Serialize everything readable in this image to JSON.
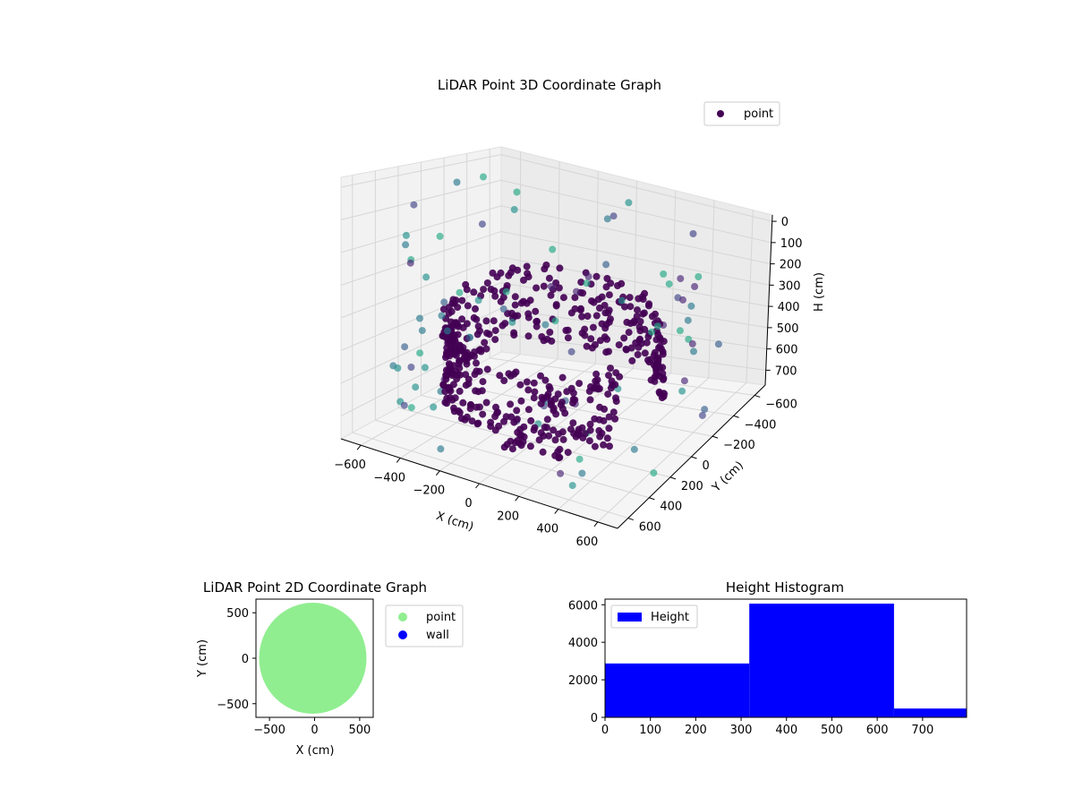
{
  "chart_data": [
    {
      "type": "scatter3d",
      "title": "LiDAR Point 3D Coordinate Graph",
      "xlabel": "X (cm)",
      "ylabel": "Y (cm)",
      "zlabel": "H (cm)",
      "xticks": [
        "−600",
        "−400",
        "−200",
        "0",
        "200",
        "400",
        "600"
      ],
      "yticks": [
        "−600",
        "−400",
        "−200",
        "0",
        "200",
        "400",
        "600"
      ],
      "zticks": [
        "0",
        "100",
        "200",
        "300",
        "400",
        "500",
        "600",
        "700"
      ],
      "xlim": [
        -650,
        650
      ],
      "ylim": [
        -650,
        650
      ],
      "zlim": [
        750,
        0
      ],
      "zaxis_inverted": true,
      "legend": [
        {
          "label": "point",
          "color": "#440154"
        }
      ],
      "legend_position": "upper-right",
      "colormap": "viridis",
      "grid": true
    },
    {
      "type": "scatter",
      "title": "LiDAR Point 2D Coordinate Graph",
      "xlabel": "X (cm)",
      "ylabel": "Y (cm)",
      "xticks": [
        "−500",
        "0",
        "500"
      ],
      "yticks": [
        "−500",
        "0",
        "500"
      ],
      "xlim": [
        -650,
        650
      ],
      "ylim": [
        -650,
        650
      ],
      "series": [
        {
          "name": "point",
          "color": "#90ee90"
        },
        {
          "name": "wall",
          "color": "#0000ff"
        }
      ],
      "legend_position": "outside-right"
    },
    {
      "type": "bar",
      "title": "Height Histogram",
      "xticks": [
        "0",
        "100",
        "200",
        "300",
        "400",
        "500",
        "600",
        "700"
      ],
      "yticks": [
        "0",
        "2000",
        "4000",
        "6000"
      ],
      "xlim": [
        0,
        797
      ],
      "ylim": [
        0,
        6300
      ],
      "bins": [
        {
          "from": 0,
          "to": 318,
          "count": 2870
        },
        {
          "from": 318,
          "to": 637,
          "count": 6060
        },
        {
          "from": 637,
          "to": 797,
          "count": 470
        }
      ],
      "series": [
        {
          "name": "Height",
          "color": "#0000ff"
        }
      ],
      "legend_position": "upper-left"
    }
  ]
}
